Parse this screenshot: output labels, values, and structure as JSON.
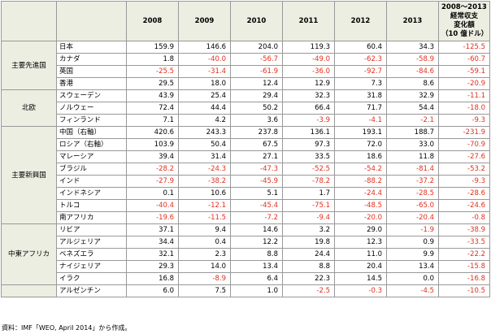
{
  "table": {
    "header": [
      "2008",
      "2009",
      "2010",
      "2011",
      "2012",
      "2013",
      "2008～2013 年\n経常収支\n変化額\n（10 億ドル）"
    ],
    "groups": [
      {
        "label": "主要先進国",
        "rows": [
          [
            "日本",
            "159.9",
            "146.6",
            "204.0",
            "119.3",
            "60.4",
            "34.3",
            "-125.5"
          ],
          [
            "カナダ",
            "1.8",
            "-40.0",
            "-56.7",
            "-49.0",
            "-62.3",
            "-58.9",
            "-60.7"
          ],
          [
            "英国",
            "-25.5",
            "-31.4",
            "-61.9",
            "-36.0",
            "-92.7",
            "-84.6",
            "-59.1"
          ],
          [
            "香港",
            "29.5",
            "18.0",
            "12.4",
            "12.9",
            "7.3",
            "8.6",
            "-20.9"
          ]
        ]
      },
      {
        "label": "北欧",
        "rows": [
          [
            "スウェーデン",
            "43.9",
            "25.4",
            "29.4",
            "32.3",
            "31.8",
            "32.9",
            "-11.1"
          ],
          [
            "ノルウェー",
            "72.4",
            "44.4",
            "50.2",
            "66.4",
            "71.7",
            "54.4",
            "-18.0"
          ],
          [
            "フィンランド",
            "7.1",
            "4.2",
            "3.6",
            "-3.9",
            "-4.1",
            "-2.1",
            "-9.3"
          ]
        ]
      },
      {
        "label": "主要新興国",
        "rows": [
          [
            "中国（右軸）",
            "420.6",
            "243.3",
            "237.8",
            "136.1",
            "193.1",
            "188.7",
            "-231.9"
          ],
          [
            "ロシア（右軸）",
            "103.9",
            "50.4",
            "67.5",
            "97.3",
            "72.0",
            "33.0",
            "-70.9"
          ],
          [
            "マレーシア",
            "39.4",
            "31.4",
            "27.1",
            "33.5",
            "18.6",
            "11.8",
            "-27.6"
          ],
          [
            "ブラジル",
            "-28.2",
            "-24.3",
            "-47.3",
            "-52.5",
            "-54.2",
            "-81.4",
            "-53.2"
          ],
          [
            "インド",
            "-27.9",
            "-38.2",
            "-45.9",
            "-78.2",
            "-88.2",
            "-37.2",
            "-9.3"
          ],
          [
            "インドネシア",
            "0.1",
            "10.6",
            "5.1",
            "1.7",
            "-24.4",
            "-28.5",
            "-28.6"
          ],
          [
            "トルコ",
            "-40.4",
            "-12.1",
            "-45.4",
            "-75.1",
            "-48.5",
            "-65.0",
            "-24.6"
          ],
          [
            "南アフリカ",
            "-19.6",
            "-11.5",
            "-7.2",
            "-9.4",
            "-20.0",
            "-20.4",
            "-0.8"
          ]
        ]
      },
      {
        "label": "中東アフリカ",
        "rows": [
          [
            "リビア",
            "37.1",
            "9.4",
            "14.6",
            "3.2",
            "29.0",
            "-1.9",
            "-38.9"
          ],
          [
            "アルジェリア",
            "34.4",
            "0.4",
            "12.2",
            "19.8",
            "12.3",
            "0.9",
            "-33.5"
          ],
          [
            "ベネズエラ",
            "32.1",
            "2.3",
            "8.8",
            "24.4",
            "11.0",
            "9.9",
            "-22.2"
          ],
          [
            "ナイジェリア",
            "29.3",
            "14.0",
            "13.4",
            "8.8",
            "20.4",
            "13.4",
            "-15.8"
          ],
          [
            "イラク",
            "16.8",
            "-8.9",
            "6.4",
            "22.3",
            "14.5",
            "0.0",
            "-16.8"
          ]
        ]
      },
      {
        "rows": [
          [
            "アルゼンチン",
            "6.0",
            "7.5",
            "1.0",
            "-2.5",
            "-0.3",
            "-4.5",
            "-10.5"
          ]
        ]
      }
    ]
  },
  "footnote": "資料：IMF「WEO, April 2014」から作成。"
}
